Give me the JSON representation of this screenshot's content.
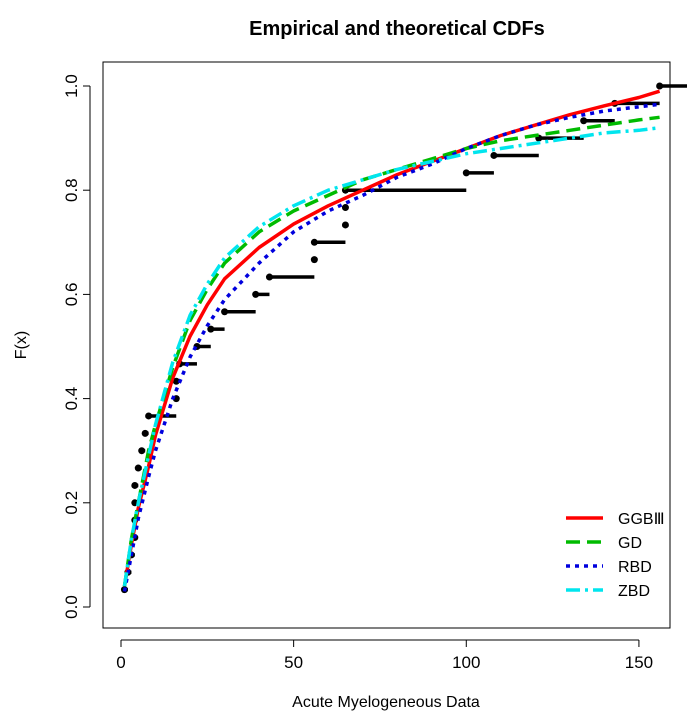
{
  "chart_data": {
    "type": "line",
    "title": "Empirical and theoretical CDFs",
    "xlabel": "Acute Myelogeneous Data",
    "ylabel": "F(x)",
    "xlim": [
      0,
      160
    ],
    "ylim": [
      0,
      1
    ],
    "xticks": [
      0,
      50,
      100,
      150
    ],
    "yticks": [
      0.0,
      0.2,
      0.4,
      0.6,
      0.8,
      1.0
    ],
    "xtick_labels": [
      "0",
      "50",
      "100",
      "150"
    ],
    "ytick_labels": [
      "0.0",
      "0.2",
      "0.4",
      "0.6",
      "0.8",
      "1.0"
    ],
    "grid": false,
    "legend_position": "bottom-right",
    "empirical": {
      "x": [
        1,
        2,
        3,
        4,
        4,
        4,
        4,
        5,
        6,
        7,
        8,
        16,
        16,
        17,
        22,
        26,
        30,
        39,
        43,
        56,
        56,
        65,
        65,
        65,
        100,
        108,
        121,
        134,
        143,
        156
      ],
      "y": [
        0.0333,
        0.0667,
        0.1,
        0.1333,
        0.1667,
        0.2,
        0.2333,
        0.2667,
        0.3,
        0.3333,
        0.3667,
        0.4,
        0.4333,
        0.4667,
        0.5,
        0.5333,
        0.5667,
        0.6,
        0.6333,
        0.6667,
        0.7,
        0.7333,
        0.7667,
        0.8,
        0.8333,
        0.8667,
        0.9,
        0.9333,
        0.9667,
        1.0
      ],
      "color": "#000000"
    },
    "series": [
      {
        "name": "GGBⅢ",
        "color": "#ff0000",
        "dash": "solid",
        "x": [
          1,
          3,
          5,
          8,
          10,
          15,
          20,
          25,
          30,
          40,
          50,
          60,
          70,
          80,
          90,
          100,
          110,
          120,
          130,
          140,
          150,
          156
        ],
        "values": [
          0.04,
          0.12,
          0.19,
          0.27,
          0.33,
          0.44,
          0.52,
          0.58,
          0.63,
          0.69,
          0.735,
          0.77,
          0.8,
          0.83,
          0.855,
          0.88,
          0.905,
          0.925,
          0.945,
          0.962,
          0.978,
          0.99
        ]
      },
      {
        "name": "GD",
        "color": "#00bb00",
        "dash": "long-dash",
        "x": [
          1,
          3,
          5,
          8,
          10,
          15,
          20,
          25,
          30,
          40,
          50,
          60,
          70,
          80,
          90,
          100,
          110,
          120,
          130,
          140,
          150,
          156
        ],
        "values": [
          0.04,
          0.13,
          0.2,
          0.3,
          0.35,
          0.46,
          0.55,
          0.61,
          0.66,
          0.72,
          0.76,
          0.79,
          0.82,
          0.84,
          0.86,
          0.88,
          0.895,
          0.905,
          0.915,
          0.925,
          0.935,
          0.94
        ]
      },
      {
        "name": "RBD",
        "color": "#0000dd",
        "dash": "dotted",
        "x": [
          1,
          3,
          5,
          8,
          10,
          15,
          20,
          25,
          30,
          40,
          50,
          60,
          70,
          80,
          90,
          100,
          110,
          120,
          130,
          140,
          150,
          156
        ],
        "values": [
          0.03,
          0.1,
          0.17,
          0.25,
          0.3,
          0.4,
          0.48,
          0.54,
          0.59,
          0.66,
          0.72,
          0.76,
          0.79,
          0.825,
          0.85,
          0.88,
          0.905,
          0.925,
          0.94,
          0.952,
          0.96,
          0.965
        ]
      },
      {
        "name": "ZBD",
        "color": "#00e5ee",
        "dash": "dash-dot",
        "x": [
          1,
          3,
          5,
          8,
          10,
          15,
          20,
          25,
          30,
          40,
          50,
          60,
          70,
          80,
          90,
          100,
          110,
          120,
          130,
          140,
          150,
          156
        ],
        "values": [
          0.04,
          0.13,
          0.2,
          0.29,
          0.35,
          0.47,
          0.56,
          0.62,
          0.67,
          0.73,
          0.77,
          0.8,
          0.82,
          0.84,
          0.855,
          0.87,
          0.88,
          0.89,
          0.9,
          0.91,
          0.915,
          0.92
        ]
      }
    ]
  }
}
